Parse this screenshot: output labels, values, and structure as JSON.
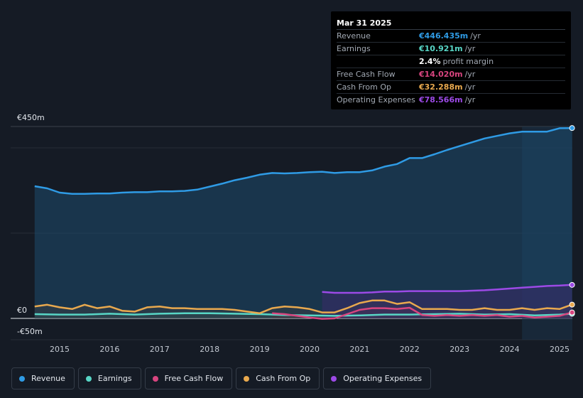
{
  "tooltip": {
    "date": "Mar 31 2025",
    "rows": [
      {
        "label": "Revenue",
        "value": "€446.435m",
        "unit": "/yr",
        "color": "#2f9be5"
      },
      {
        "label": "Earnings",
        "value": "€10.921m",
        "unit": "/yr",
        "color": "#58d6c6"
      },
      {
        "label": "",
        "value": "2.4%",
        "unit": "profit margin",
        "color": "#ffffff"
      },
      {
        "label": "Free Cash Flow",
        "value": "€14.020m",
        "unit": "/yr",
        "color": "#d8457f"
      },
      {
        "label": "Cash From Op",
        "value": "€32.288m",
        "unit": "/yr",
        "color": "#e9a94e"
      },
      {
        "label": "Operating Expenses",
        "value": "€78.566m",
        "unit": "/yr",
        "color": "#9c4ae6"
      }
    ]
  },
  "chart_data": {
    "type": "area",
    "ylim": [
      -50,
      450
    ],
    "y_tick_labels": [
      "€450m",
      "€0",
      "-€50m"
    ],
    "x_tick_labels": [
      "2015",
      "2016",
      "2017",
      "2018",
      "2019",
      "2020",
      "2021",
      "2022",
      "2023",
      "2024",
      "2025"
    ],
    "series": [
      {
        "name": "Revenue",
        "color": "#2f9be5",
        "x": [
          2014.5,
          2014.75,
          2015.0,
          2015.25,
          2015.5,
          2015.75,
          2016.0,
          2016.25,
          2016.5,
          2016.75,
          2017.0,
          2017.25,
          2017.5,
          2017.75,
          2018.0,
          2018.25,
          2018.5,
          2018.75,
          2019.0,
          2019.25,
          2019.5,
          2019.75,
          2020.0,
          2020.25,
          2020.5,
          2020.75,
          2021.0,
          2021.25,
          2021.5,
          2021.75,
          2022.0,
          2022.25,
          2022.5,
          2022.75,
          2023.0,
          2023.25,
          2023.5,
          2023.75,
          2024.0,
          2024.25,
          2024.5,
          2024.75,
          2025.0,
          2025.25
        ],
        "values": [
          310,
          305,
          295,
          292,
          292,
          293,
          293,
          295,
          296,
          296,
          298,
          298,
          299,
          302,
          309,
          316,
          324,
          330,
          337,
          341,
          340,
          341,
          343,
          344,
          341,
          343,
          343,
          347,
          356,
          362,
          376,
          376,
          385,
          395,
          404,
          413,
          422,
          428,
          434,
          438,
          438,
          438,
          446,
          446.4
        ]
      },
      {
        "name": "Earnings",
        "color": "#58d6c6",
        "x": [
          2014.5,
          2015.0,
          2015.5,
          2016.0,
          2016.5,
          2017.0,
          2017.5,
          2018.0,
          2018.5,
          2019.0,
          2019.5,
          2020.0,
          2020.5,
          2021.0,
          2021.5,
          2022.0,
          2022.5,
          2023.0,
          2023.5,
          2024.0,
          2024.5,
          2025.0,
          2025.25
        ],
        "values": [
          10,
          9,
          9,
          11,
          9,
          11,
          12,
          12,
          11,
          10,
          8,
          7,
          6,
          7,
          9,
          9,
          10,
          11,
          9,
          10,
          7,
          9,
          10.9
        ]
      },
      {
        "name": "Free Cash Flow",
        "color": "#d8457f",
        "x": [
          2019.25,
          2019.5,
          2019.75,
          2020.0,
          2020.25,
          2020.5,
          2020.75,
          2021.0,
          2021.25,
          2021.5,
          2021.75,
          2022.0,
          2022.25,
          2022.5,
          2022.75,
          2023.0,
          2023.25,
          2023.5,
          2023.75,
          2024.0,
          2024.25,
          2024.5,
          2024.75,
          2025.0,
          2025.25
        ],
        "values": [
          12,
          10,
          6,
          2,
          -1,
          0,
          10,
          20,
          24,
          24,
          22,
          25,
          8,
          6,
          8,
          6,
          8,
          6,
          8,
          4,
          6,
          2,
          4,
          6,
          14
        ]
      },
      {
        "name": "Cash From Op",
        "color": "#e9a94e",
        "x": [
          2014.5,
          2014.75,
          2015.0,
          2015.25,
          2015.5,
          2015.75,
          2016.0,
          2016.25,
          2016.5,
          2016.75,
          2017.0,
          2017.25,
          2017.5,
          2017.75,
          2018.0,
          2018.25,
          2018.5,
          2018.75,
          2019.0,
          2019.25,
          2019.5,
          2019.75,
          2020.0,
          2020.25,
          2020.5,
          2020.75,
          2021.0,
          2021.25,
          2021.5,
          2021.75,
          2022.0,
          2022.25,
          2022.5,
          2022.75,
          2023.0,
          2023.25,
          2023.5,
          2023.75,
          2024.0,
          2024.25,
          2024.5,
          2024.75,
          2025.0,
          2025.25
        ],
        "values": [
          28,
          32,
          26,
          22,
          32,
          24,
          28,
          18,
          16,
          26,
          28,
          24,
          24,
          22,
          22,
          22,
          20,
          16,
          12,
          24,
          28,
          26,
          22,
          14,
          14,
          24,
          36,
          42,
          42,
          34,
          38,
          22,
          22,
          22,
          20,
          20,
          24,
          20,
          20,
          24,
          20,
          24,
          22,
          32.3
        ]
      },
      {
        "name": "Operating Expenses",
        "color": "#9c4ae6",
        "x": [
          2020.25,
          2020.5,
          2020.75,
          2021.0,
          2021.25,
          2021.5,
          2021.75,
          2022.0,
          2022.25,
          2022.5,
          2022.75,
          2023.0,
          2023.25,
          2023.5,
          2023.75,
          2024.0,
          2024.25,
          2024.5,
          2024.75,
          2025.0,
          2025.25
        ],
        "values": [
          62,
          60,
          60,
          60,
          61,
          63,
          63,
          64,
          64,
          64,
          64,
          64,
          65,
          66,
          68,
          70,
          72,
          74,
          76,
          77,
          78.6
        ]
      }
    ]
  },
  "legend": [
    {
      "label": "Revenue",
      "color": "#2f9be5"
    },
    {
      "label": "Earnings",
      "color": "#58d6c6"
    },
    {
      "label": "Free Cash Flow",
      "color": "#d8457f"
    },
    {
      "label": "Cash From Op",
      "color": "#e9a94e"
    },
    {
      "label": "Operating Expenses",
      "color": "#9c4ae6"
    }
  ]
}
